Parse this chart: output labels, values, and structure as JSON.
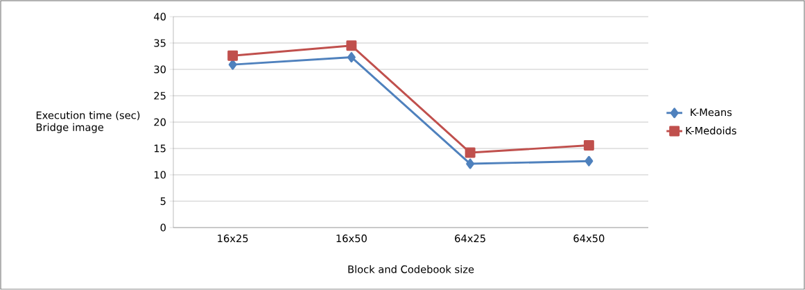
{
  "chart_data": {
    "type": "line",
    "xlabel": "Block and Codebook size",
    "ylabel": "Execution time (sec) Bridge image",
    "categories": [
      "16x25",
      "16x50",
      "64x25",
      "64x50"
    ],
    "series": [
      {
        "name": "K-Means",
        "color": "#4f81bd",
        "marker": "diamond",
        "values": [
          30.9,
          32.3,
          12.1,
          12.6
        ]
      },
      {
        "name": "K-Medoids",
        "color": "#c0504d",
        "marker": "square",
        "values": [
          32.6,
          34.5,
          14.2,
          15.6
        ]
      }
    ],
    "ylim": [
      0,
      40
    ],
    "yticks": [
      0,
      5,
      10,
      15,
      20,
      25,
      30,
      35,
      40
    ],
    "grid": "y",
    "legend": "right"
  }
}
